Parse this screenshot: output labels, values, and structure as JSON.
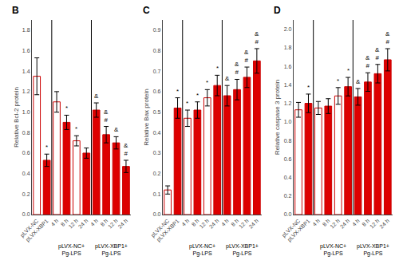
{
  "chart_data": [
    {
      "type": "bar",
      "title": "B",
      "y_label": "Relative Bcl-2 protein",
      "categories": [
        "pLVX-NC",
        "pLVX-XBP1",
        "4 h",
        "8 h",
        "12 h",
        "24 h",
        "4 h",
        "8 h",
        "12 h",
        "24 h"
      ],
      "values": [
        1.35,
        0.53,
        1.1,
        0.9,
        0.72,
        0.6,
        1.02,
        0.78,
        0.7,
        0.47
      ],
      "errors": [
        0.18,
        0.06,
        0.1,
        0.07,
        0.05,
        0.05,
        0.07,
        0.08,
        0.06,
        0.06
      ],
      "colors": [
        "#ffffff",
        "#dd0000",
        "#ffffff",
        "#dd0000",
        "#ffffff",
        "#dd0000",
        "#dd0000",
        "#dd0000",
        "#dd0000",
        "#dd0000"
      ],
      "color": "#cc0000",
      "annotations": [
        null,
        "*",
        null,
        "*",
        "*",
        null,
        "&",
        "&\n#",
        "&",
        "&\n#"
      ],
      "groups": [
        {
          "label": "pLVX-NC+\nPg-LPS",
          "start": 2,
          "end": 5
        },
        {
          "label": "pLVX-XBP1+\nPg-LPS",
          "start": 6,
          "end": 9
        }
      ],
      "ylim": [
        0,
        1.9
      ],
      "yticks": [
        {
          "value": 0,
          "label": "0.0"
        },
        0.2,
        0.4,
        0.6,
        0.8,
        {
          "value": 1.0,
          "label": "1.0"
        },
        1.2,
        1.4,
        1.6,
        1.8
      ],
      "grid": false
    },
    {
      "type": "bar",
      "title": "C",
      "y_label": "Relative Bax protein",
      "categories": [
        "pLVX-NC",
        "pLVX-XBP1",
        "4 h",
        "8 h",
        "12 h",
        "24 h",
        "4 h",
        "8 h",
        "12 h",
        "24 h"
      ],
      "values": [
        0.12,
        0.52,
        0.47,
        0.51,
        0.57,
        0.63,
        0.58,
        0.61,
        0.67,
        0.75
      ],
      "errors": [
        0.02,
        0.05,
        0.04,
        0.04,
        0.04,
        0.05,
        0.05,
        0.05,
        0.05,
        0.06
      ],
      "colors": [
        "#ffffff",
        "#dd0000",
        "#ffffff",
        "#dd0000",
        "#ffffff",
        "#dd0000",
        "#dd0000",
        "#dd0000",
        "#dd0000",
        "#dd0000"
      ],
      "color": "#cc0000",
      "annotations": [
        null,
        "*",
        "*",
        "*",
        "*",
        "*",
        "&",
        "&\n#",
        "&\n#",
        "&\n#"
      ],
      "groups": [
        {
          "label": "pLVX-NC+\nPg-LPS",
          "start": 2,
          "end": 5
        },
        {
          "label": "pLVX-XBP1+\nPg-LPS",
          "start": 6,
          "end": 9
        }
      ],
      "ylim": [
        0,
        0.95
      ],
      "yticks": [
        {
          "value": 0,
          "label": "0.0"
        },
        0.1,
        0.2,
        0.3,
        0.4,
        0.5,
        0.6,
        0.7,
        0.8,
        0.9
      ],
      "grid": false
    },
    {
      "type": "bar",
      "title": "D",
      "y_label": "Relative caspase 3 protein",
      "categories": [
        "pLVX-NC",
        "pLVX-XBP1",
        "4 h",
        "8 h",
        "12 h",
        "24 h",
        "4 h",
        "8 h",
        "12 h",
        "24 h"
      ],
      "values": [
        1.13,
        1.2,
        1.15,
        1.17,
        1.28,
        1.38,
        1.27,
        1.43,
        1.52,
        1.67
      ],
      "errors": [
        0.08,
        0.1,
        0.07,
        0.08,
        0.09,
        0.1,
        0.09,
        0.1,
        0.1,
        0.12
      ],
      "colors": [
        "#ffffff",
        "#dd0000",
        "#ffffff",
        "#dd0000",
        "#ffffff",
        "#dd0000",
        "#dd0000",
        "#dd0000",
        "#dd0000",
        "#dd0000"
      ],
      "color": "#cc0000",
      "annotations": [
        null,
        "*",
        null,
        null,
        "*",
        "*",
        "&",
        "&\n#",
        "&\n#",
        "&\n#"
      ],
      "groups": [
        {
          "label": "pLVX-NC+\nPg-LPS",
          "start": 2,
          "end": 5
        },
        {
          "label": "pLVX-XBP1+\nPg-LPS",
          "start": 6,
          "end": 9
        }
      ],
      "ylim": [
        0,
        2.1
      ],
      "yticks": [
        {
          "value": 0,
          "label": "0.0"
        },
        0.2,
        0.4,
        0.6,
        0.8,
        {
          "value": 1.0,
          "label": "1.0"
        },
        1.2,
        1.4,
        1.6,
        1.8,
        {
          "value": 2.0,
          "label": "2.0"
        }
      ],
      "grid": false
    }
  ]
}
